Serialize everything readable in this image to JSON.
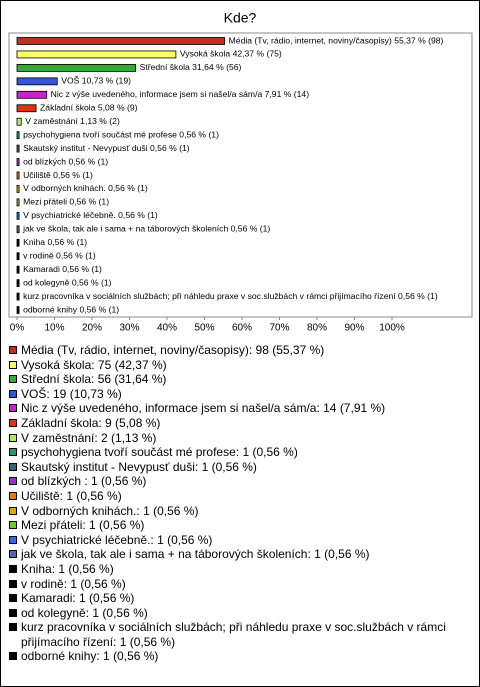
{
  "chart_data": {
    "type": "bar",
    "orientation": "horizontal",
    "title": "Kde?",
    "categories": [
      "Média (Tv, rádio, internet, noviny/časopisy)",
      "Vysoká škola",
      "Střední škola",
      "VOŠ",
      "Nic z výše uvedeného, informace jsem si našel/a sám/a",
      "Základní škola",
      "V zaměstnání",
      "psychohygiena tvoří součást mé profese",
      "Skautský institut - Nevypusť duši",
      "od blízkých",
      "Učiliště",
      "V odborných knihách.",
      "Mezi přáteli",
      "V psychiatrické léčebně.",
      "jak ve škola, tak ale i sama + na táborových školeních",
      "Kniha",
      "v rodině",
      "Kamaradi",
      "od kolegyně",
      "kurz pracovníka v sociálních službách; při náhledu praxe v soc.službách v rámci přijímacího řízení",
      "odborné knihy"
    ],
    "values": [
      55.37,
      42.37,
      31.64,
      10.73,
      7.91,
      5.08,
      1.13,
      0.56,
      0.56,
      0.56,
      0.56,
      0.56,
      0.56,
      0.56,
      0.56,
      0.56,
      0.56,
      0.56,
      0.56,
      0.56,
      0.56
    ],
    "counts": [
      98,
      75,
      56,
      19,
      14,
      9,
      2,
      1,
      1,
      1,
      1,
      1,
      1,
      1,
      1,
      1,
      1,
      1,
      1,
      1,
      1
    ],
    "value_labels": [
      "Média (Tv, rádio, internet, noviny/časopisy) 55,37 % (98)",
      "Vysoká škola 42,37 % (75)",
      "Střední škola 31,64 % (56)",
      "VOŠ 10,73 % (19)",
      "Nic z výše uvedeného, informace jsem si našel/a sám/a 7,91 % (14)",
      "Základní škola 5,08 % (9)",
      "V zaměstnání 1,13 % (2)",
      "psychohygiena tvoří součást mé profese 0,56 % (1)",
      "Skautský institut - Nevypusť duši 0,56 % (1)",
      "od blízkých  0,56 % (1)",
      "Učiliště 0,56 % (1)",
      "V odborných knihách. 0,56 % (1)",
      "Mezi přáteli 0,56 % (1)",
      "V psychiatrické léčebně. 0,56 % (1)",
      "jak ve škola, tak ale i sama + na táborových školeních 0,56 % (1)",
      "Kniha 0,56 % (1)",
      "v rodině 0,56 % (1)",
      "Kamaradi 0,56 % (1)",
      "od kolegyně 0,56 % (1)",
      "kurz pracovníka v sociálních službách; při náhledu praxe v soc.službách v rámci přijímacího řízení 0,56 % (1)",
      "odborné knihy 0,56 % (1)"
    ],
    "legend_labels": [
      "Média (Tv, rádio, internet, noviny/časopisy): 98 (55,37 %)",
      "Vysoká škola: 75 (42,37 %)",
      "Střední škola: 56 (31,64 %)",
      "VOŠ: 19 (10,73 %)",
      "Nic z výše uvedeného, informace jsem si našel/a sám/a: 14 (7,91 %)",
      "Základní škola: 9 (5,08 %)",
      "V zaměstnání: 2 (1,13 %)",
      "psychohygiena tvoří součást mé profese: 1 (0,56 %)",
      "Skautský institut - Nevypusť duši: 1 (0,56 %)",
      "od blízkých : 1 (0,56 %)",
      "Učiliště: 1 (0,56 %)",
      "V odborných knihách.: 1 (0,56 %)",
      "Mezi přáteli: 1 (0,56 %)",
      "V psychiatrické léčebně.: 1 (0,56 %)",
      "jak ve škola, tak ale i sama + na táborových školeních: 1 (0,56 %)",
      "Kniha: 1 (0,56 %)",
      "v rodině: 1 (0,56 %)",
      "Kamaradi: 1 (0,56 %)",
      "od kolegyně: 1 (0,56 %)",
      "kurz pracovníka v sociálních službách; při náhledu praxe v soc.službách v rámci přijímacího řízení: 1 (0,56 %)",
      "odborné knihy: 1 (0,56 %)"
    ],
    "colors": [
      "#c0301c",
      "#ffff66",
      "#33aa33",
      "#3355dd",
      "#cc22cc",
      "#dd3311",
      "#aaee66",
      "#229966",
      "#336677",
      "#9933cc",
      "#ee7711",
      "#ddaa00",
      "#66cc33",
      "#3366ee",
      "#5566aa",
      "#000000",
      "#000000",
      "#000000",
      "#000000",
      "#000000",
      "#000000"
    ],
    "xlim": [
      0,
      100
    ],
    "xticks": [
      {
        "value": 0,
        "label": "0%"
      },
      {
        "value": 10,
        "label": "10%"
      },
      {
        "value": 20,
        "label": "20%"
      },
      {
        "value": 30,
        "label": "30%"
      },
      {
        "value": 40,
        "label": "40%"
      },
      {
        "value": 50,
        "label": "50%"
      },
      {
        "value": 60,
        "label": "60%"
      },
      {
        "value": 70,
        "label": "70%"
      },
      {
        "value": 80,
        "label": "80%"
      },
      {
        "value": 90,
        "label": "90%"
      },
      {
        "value": 100,
        "label": "100%"
      }
    ]
  }
}
